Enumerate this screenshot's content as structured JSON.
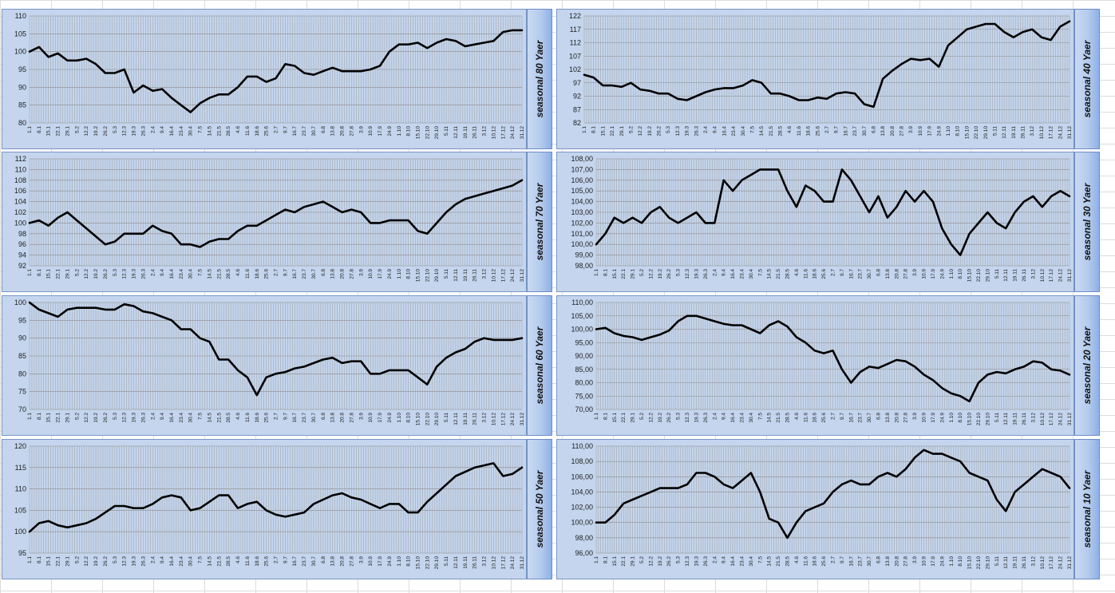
{
  "chart_data": [
    {
      "id": "c80",
      "type": "line",
      "label": "seasonal 80 Yaer",
      "yticks": [
        "110",
        "105",
        "100",
        "95",
        "90",
        "85",
        "80"
      ],
      "ylim": [
        80,
        110
      ],
      "x": [
        "1.1",
        "8.1",
        "15.1",
        "22.1",
        "29.1",
        "5.2",
        "12.2",
        "19.2",
        "26.2",
        "5.3",
        "12.3",
        "19.3",
        "26.3",
        "2.4",
        "9.4",
        "16.4",
        "23.4",
        "30.4",
        "7.5",
        "14.5",
        "21.5",
        "28.5",
        "4.6",
        "11.6",
        "18.6",
        "25.6",
        "2.7",
        "9.7",
        "16.7",
        "23.7",
        "30.7",
        "6.8",
        "13.8",
        "20.8",
        "27.8",
        "3.9",
        "10.9",
        "17.9",
        "24.9",
        "1.10",
        "8.10",
        "15.10",
        "22.10",
        "29.10",
        "5.11",
        "12.11",
        "19.11",
        "26.11",
        "3.12",
        "10.12",
        "17.12",
        "24.12",
        "31.12"
      ],
      "values": [
        100,
        101.3,
        98.5,
        99.5,
        97.5,
        97.5,
        98,
        96.5,
        94,
        94,
        95,
        88.5,
        90.5,
        89,
        89.5,
        87,
        85,
        83,
        85.5,
        87,
        88,
        88,
        90,
        93,
        93,
        91.5,
        92.5,
        96.5,
        96,
        94,
        93.5,
        94.5,
        95.5,
        94.5,
        94.5,
        94.5,
        95,
        96,
        100,
        102,
        102,
        102.5,
        101,
        102.5,
        103.5,
        103,
        101.5,
        102,
        102.5,
        103,
        105.5,
        106,
        106
      ]
    },
    {
      "id": "c40",
      "type": "line",
      "label": "seasonal 40 Yaer",
      "yticks": [
        "122",
        "117",
        "112",
        "107",
        "102",
        "97",
        "92",
        "87",
        "82"
      ],
      "ylim": [
        82,
        122
      ],
      "x": [
        "1.1",
        "8.1",
        "15.1",
        "22.1",
        "29.1",
        "5.2",
        "12.2",
        "19.2",
        "26.2",
        "5.3",
        "12.3",
        "19.3",
        "26.3",
        "2.4",
        "9.4",
        "16.4",
        "23.4",
        "30.4",
        "7.5",
        "14.5",
        "21.5",
        "28.5",
        "4.6",
        "11.6",
        "18.6",
        "25.6",
        "2.7",
        "9.7",
        "16.7",
        "23.7",
        "30.7",
        "6.8",
        "13.8",
        "20.8",
        "27.8",
        "3.9",
        "10.9",
        "17.9",
        "24.9",
        "1.10",
        "8.10",
        "15.10",
        "22.10",
        "29.10",
        "5.11",
        "12.11",
        "19.11",
        "26.11",
        "3.12",
        "10.12",
        "17.12",
        "24.12",
        "31.12"
      ],
      "values": [
        100,
        99,
        96,
        96,
        95.5,
        97,
        94.5,
        94,
        93,
        93,
        91,
        90.5,
        92,
        93.5,
        94.5,
        95,
        95,
        96,
        98,
        97,
        93,
        93,
        92,
        90.5,
        90.5,
        91.5,
        91,
        93,
        93.5,
        93,
        89,
        88,
        98.5,
        101.5,
        104,
        106,
        105.5,
        106,
        103,
        111,
        114,
        117,
        118,
        119,
        119,
        116,
        114,
        116,
        117,
        114,
        113,
        118,
        120
      ]
    },
    {
      "id": "c70",
      "type": "line",
      "label": "seasonal 70 Yaer",
      "yticks": [
        "112",
        "110",
        "108",
        "106",
        "104",
        "102",
        "100",
        "98",
        "96",
        "94",
        "92"
      ],
      "ylim": [
        92,
        112
      ],
      "x": [
        "1.1",
        "8.1",
        "15.1",
        "22.1",
        "29.1",
        "5.2",
        "12.2",
        "19.2",
        "26.2",
        "5.3",
        "12.3",
        "19.3",
        "26.3",
        "2.4",
        "9.4",
        "16.4",
        "23.4",
        "30.4",
        "7.5",
        "14.5",
        "21.5",
        "28.5",
        "4.6",
        "11.6",
        "18.6",
        "25.6",
        "2.7",
        "9.7",
        "16.7",
        "23.7",
        "30.7",
        "6.8",
        "13.8",
        "20.8",
        "27.8",
        "3.9",
        "10.9",
        "17.9",
        "24.9",
        "1.10",
        "8.10",
        "15.10",
        "22.10",
        "29.10",
        "5.11",
        "12.11",
        "19.11",
        "26.11",
        "3.12",
        "10.12",
        "17.12",
        "24.12",
        "31.12"
      ],
      "values": [
        100,
        100.5,
        99.5,
        101,
        102,
        100.5,
        99,
        97.5,
        96,
        96.5,
        98,
        98,
        98,
        99.5,
        98.5,
        98,
        96,
        96,
        95.5,
        96.5,
        97,
        97,
        98.5,
        99.5,
        99.5,
        100.5,
        101.5,
        102.5,
        102,
        103,
        103.5,
        104,
        103,
        102,
        102.5,
        102,
        100,
        100,
        100.5,
        100.5,
        100.5,
        98.5,
        98,
        100,
        102,
        103.5,
        104.5,
        105,
        105.5,
        106,
        106.5,
        107,
        108
      ]
    },
    {
      "id": "c30",
      "type": "line",
      "label": "seasonal 30 Yaer",
      "yticks": [
        "108,00",
        "107,00",
        "106,00",
        "105,00",
        "104,00",
        "103,00",
        "102,00",
        "101,00",
        "100,00",
        "99,00",
        "98,00"
      ],
      "ylim": [
        98,
        108
      ],
      "x": [
        "1.1",
        "8.1",
        "15.1",
        "22.1",
        "29.1",
        "5.2",
        "12.2",
        "19.2",
        "26.2",
        "5.3",
        "12.3",
        "19.3",
        "26.3",
        "2.4",
        "9.4",
        "16.4",
        "23.4",
        "30.4",
        "7.5",
        "14.5",
        "21.5",
        "28.5",
        "4.6",
        "11.6",
        "18.6",
        "25.6",
        "2.7",
        "9.7",
        "16.7",
        "23.7",
        "30.7",
        "6.8",
        "13.8",
        "20.8",
        "27.8",
        "3.9",
        "10.9",
        "17.9",
        "24.9",
        "1.10",
        "8.10",
        "15.10",
        "22.10",
        "29.10",
        "5.11",
        "12.11",
        "19.11",
        "26.11",
        "3.12",
        "10.12",
        "17.12",
        "24.12",
        "31.12"
      ],
      "values": [
        100,
        101,
        102.5,
        102,
        102.5,
        102,
        103,
        103.5,
        102.5,
        102,
        102.5,
        103,
        102,
        102,
        106,
        105,
        106,
        106.5,
        107,
        107,
        107,
        105,
        103.5,
        105.5,
        105,
        104,
        104,
        107,
        106,
        104.5,
        103,
        104.5,
        102.5,
        103.5,
        105,
        104,
        105,
        104,
        101.5,
        100,
        99,
        101,
        102,
        103,
        102,
        101.5,
        103,
        104,
        104.5,
        103.5,
        104.5,
        105,
        104.5
      ]
    },
    {
      "id": "c60",
      "type": "line",
      "label": "seasonal 60 Yaer",
      "yticks": [
        "100",
        "95",
        "90",
        "85",
        "80",
        "75",
        "70"
      ],
      "ylim": [
        70,
        100
      ],
      "x": [
        "1.1",
        "8.1",
        "15.1",
        "22.1",
        "29.1",
        "5.2",
        "12.2",
        "19.2",
        "26.2",
        "5.3",
        "12.3",
        "19.3",
        "26.3",
        "2.4",
        "9.4",
        "16.4",
        "23.4",
        "30.4",
        "7.5",
        "14.5",
        "21.5",
        "28.5",
        "4.6",
        "11.6",
        "18.6",
        "25.6",
        "2.7",
        "9.7",
        "16.7",
        "23.7",
        "30.7",
        "6.8",
        "13.8",
        "20.8",
        "27.8",
        "3.9",
        "10.9",
        "17.9",
        "24.9",
        "1.10",
        "8.10",
        "15.10",
        "22.10",
        "29.10",
        "5.11",
        "12.11",
        "19.11",
        "26.11",
        "3.12",
        "10.12",
        "17.12",
        "24.12",
        "31.12"
      ],
      "values": [
        100,
        98,
        97,
        96,
        98,
        98.5,
        98.5,
        98.5,
        98,
        98,
        99.5,
        99,
        97.5,
        97,
        96,
        95,
        92.5,
        92.5,
        90,
        89,
        84,
        84,
        81,
        79,
        74,
        79,
        80,
        80.5,
        81.5,
        82,
        83,
        84,
        84.5,
        83,
        83.5,
        83.5,
        80,
        80,
        81,
        81,
        81,
        79,
        77,
        82,
        84.5,
        86,
        87,
        89,
        90,
        89.5,
        89.5,
        89.5,
        90
      ]
    },
    {
      "id": "c20",
      "type": "line",
      "label": "seasonal 20 Yaer",
      "yticks": [
        "110,00",
        "105,00",
        "100,00",
        "95,00",
        "90,00",
        "85,00",
        "80,00",
        "75,00",
        "70,00"
      ],
      "ylim": [
        70,
        110
      ],
      "x": [
        "1.1",
        "8.1",
        "15.1",
        "22.1",
        "29.1",
        "5.2",
        "12.2",
        "19.2",
        "26.2",
        "5.3",
        "12.3",
        "19.3",
        "26.3",
        "2.4",
        "9.4",
        "16.4",
        "23.4",
        "30.4",
        "7.5",
        "14.5",
        "21.5",
        "28.5",
        "4.6",
        "11.6",
        "18.6",
        "25.6",
        "2.7",
        "9.7",
        "16.7",
        "23.7",
        "30.7",
        "6.8",
        "13.8",
        "20.8",
        "27.8",
        "3.9",
        "10.9",
        "17.9",
        "24.9",
        "1.10",
        "8.10",
        "15.10",
        "22.10",
        "29.10",
        "5.11",
        "12.11",
        "19.11",
        "26.11",
        "3.12",
        "10.12",
        "17.12",
        "24.12",
        "31.12"
      ],
      "values": [
        100,
        100.5,
        98.5,
        97.5,
        97,
        96,
        97,
        98,
        99.5,
        103,
        105,
        105,
        104,
        103,
        102,
        101.5,
        101.5,
        100,
        98.5,
        101.5,
        103,
        101,
        97,
        95,
        92,
        91,
        92,
        85,
        80,
        84,
        86,
        85.5,
        87,
        88.5,
        88,
        86,
        83,
        81,
        78,
        76,
        75,
        73,
        80,
        83,
        84,
        83.5,
        85,
        86,
        88,
        87.5,
        85,
        84.5,
        83
      ]
    },
    {
      "id": "c50",
      "type": "line",
      "label": "seasonal 50 Yaer",
      "yticks": [
        "120",
        "115",
        "110",
        "105",
        "100",
        "95"
      ],
      "ylim": [
        95,
        120
      ],
      "x": [
        "1.1",
        "8.1",
        "15.1",
        "22.1",
        "29.1",
        "5.2",
        "12.2",
        "19.2",
        "26.2",
        "5.3",
        "12.3",
        "19.3",
        "26.3",
        "2.4",
        "9.4",
        "16.4",
        "23.4",
        "30.4",
        "7.5",
        "14.5",
        "21.5",
        "28.5",
        "4.6",
        "11.6",
        "18.6",
        "25.6",
        "2.7",
        "9.7",
        "16.7",
        "23.7",
        "30.7",
        "6.8",
        "13.8",
        "20.8",
        "27.8",
        "3.9",
        "10.9",
        "17.9",
        "24.9",
        "1.10",
        "8.10",
        "15.10",
        "22.10",
        "29.10",
        "5.11",
        "12.11",
        "19.11",
        "26.11",
        "3.12",
        "10.12",
        "17.12",
        "24.12",
        "31.12"
      ],
      "values": [
        100,
        102,
        102.5,
        101.5,
        101,
        101.5,
        102,
        103,
        104.5,
        106,
        106,
        105.5,
        105.5,
        106.5,
        108,
        108.5,
        108,
        105,
        105.5,
        107,
        108.5,
        108.5,
        105.5,
        106.5,
        107,
        105,
        104,
        103.5,
        104,
        104.5,
        106.5,
        107.5,
        108.5,
        109,
        108,
        107.5,
        106.5,
        105.5,
        106.5,
        106.5,
        104.5,
        104.5,
        107,
        109,
        111,
        113,
        114,
        115,
        115.5,
        116,
        113,
        113.5,
        115
      ]
    },
    {
      "id": "c10",
      "type": "line",
      "label": "seasonal 10 Yaer",
      "yticks": [
        "110,00",
        "108,00",
        "106,00",
        "104,00",
        "102,00",
        "100,00",
        "98,00",
        "96,00"
      ],
      "ylim": [
        96,
        110
      ],
      "x": [
        "1.1",
        "8.1",
        "15.1",
        "22.1",
        "29.1",
        "5.2",
        "12.2",
        "19.2",
        "26.2",
        "5.3",
        "12.3",
        "19.3",
        "26.3",
        "2.4",
        "9.4",
        "16.4",
        "23.4",
        "30.4",
        "7.5",
        "14.5",
        "21.5",
        "28.5",
        "4.6",
        "11.6",
        "18.6",
        "25.6",
        "2.7",
        "9.7",
        "16.7",
        "23.7",
        "30.7",
        "6.8",
        "13.8",
        "20.8",
        "27.8",
        "3.9",
        "10.9",
        "17.9",
        "24.9",
        "1.10",
        "8.10",
        "15.10",
        "22.10",
        "29.10",
        "5.11",
        "12.11",
        "19.11",
        "26.11",
        "3.12",
        "10.12",
        "17.12",
        "24.12",
        "31.12"
      ],
      "values": [
        100,
        100,
        101,
        102.5,
        103,
        103.5,
        104,
        104.5,
        104.5,
        104.5,
        105,
        106.5,
        106.5,
        106,
        105,
        104.5,
        105.5,
        106.5,
        104,
        100.5,
        100,
        98,
        100,
        101.5,
        102,
        102.5,
        104,
        105,
        105.5,
        105,
        105,
        106,
        106.5,
        106,
        107,
        108.5,
        109.5,
        109,
        109,
        108.5,
        108,
        106.5,
        106,
        105.5,
        103,
        101.5,
        104,
        105,
        106,
        107,
        106.5,
        106,
        104.5
      ]
    }
  ]
}
